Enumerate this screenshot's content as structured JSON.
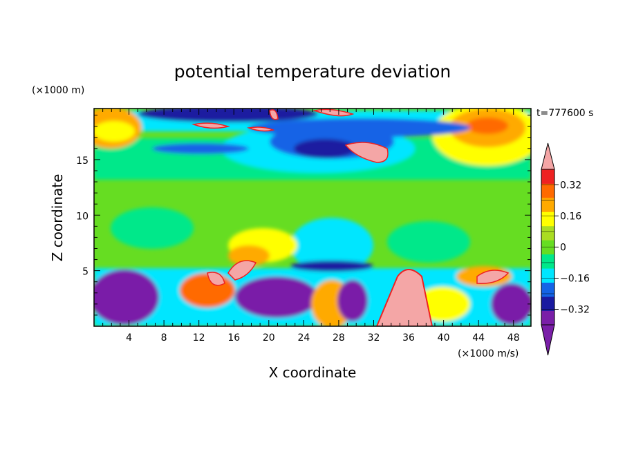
{
  "chart_data": {
    "type": "heatmap",
    "title": "potential temperature deviation",
    "xlabel": "X coordinate",
    "ylabel": "Z coordinate",
    "x_unit": "(×1000 m/s)",
    "y_unit": "(×1000 m)",
    "time_label": "t=777600 s",
    "xlim": [
      0,
      50
    ],
    "ylim": [
      0,
      19.6
    ],
    "x_ticks": [
      4,
      8,
      12,
      16,
      20,
      24,
      28,
      32,
      36,
      40,
      44,
      48
    ],
    "x_tick_labels": [
      "4",
      "8",
      "12",
      "16",
      "20",
      "24",
      "28",
      "32",
      "36",
      "40",
      "44",
      "48"
    ],
    "y_ticks": [
      5,
      10,
      15
    ],
    "y_tick_labels": [
      "5",
      "10",
      "15"
    ],
    "colorbar": {
      "levels": [
        -0.4,
        -0.32,
        -0.24,
        -0.16,
        -0.08,
        0,
        0.08,
        0.16,
        0.24,
        0.32,
        0.4
      ],
      "labels": [
        "0.32",
        "0.16",
        "0",
        "−0.16",
        "−0.32"
      ],
      "label_values": [
        0.32,
        0.16,
        0,
        -0.16,
        -0.32
      ],
      "colors_bottom_to_top": [
        "#7a1fa8",
        "#1a1aa0",
        "#1464e6",
        "#00e6ff",
        "#00e88a",
        "#66dd22",
        "#aadd22",
        "#ffff00",
        "#ffaa00",
        "#ff6a00",
        "#ee2222"
      ],
      "under_color": "#7a1fa8",
      "over_color": "#f4a6a6"
    }
  }
}
